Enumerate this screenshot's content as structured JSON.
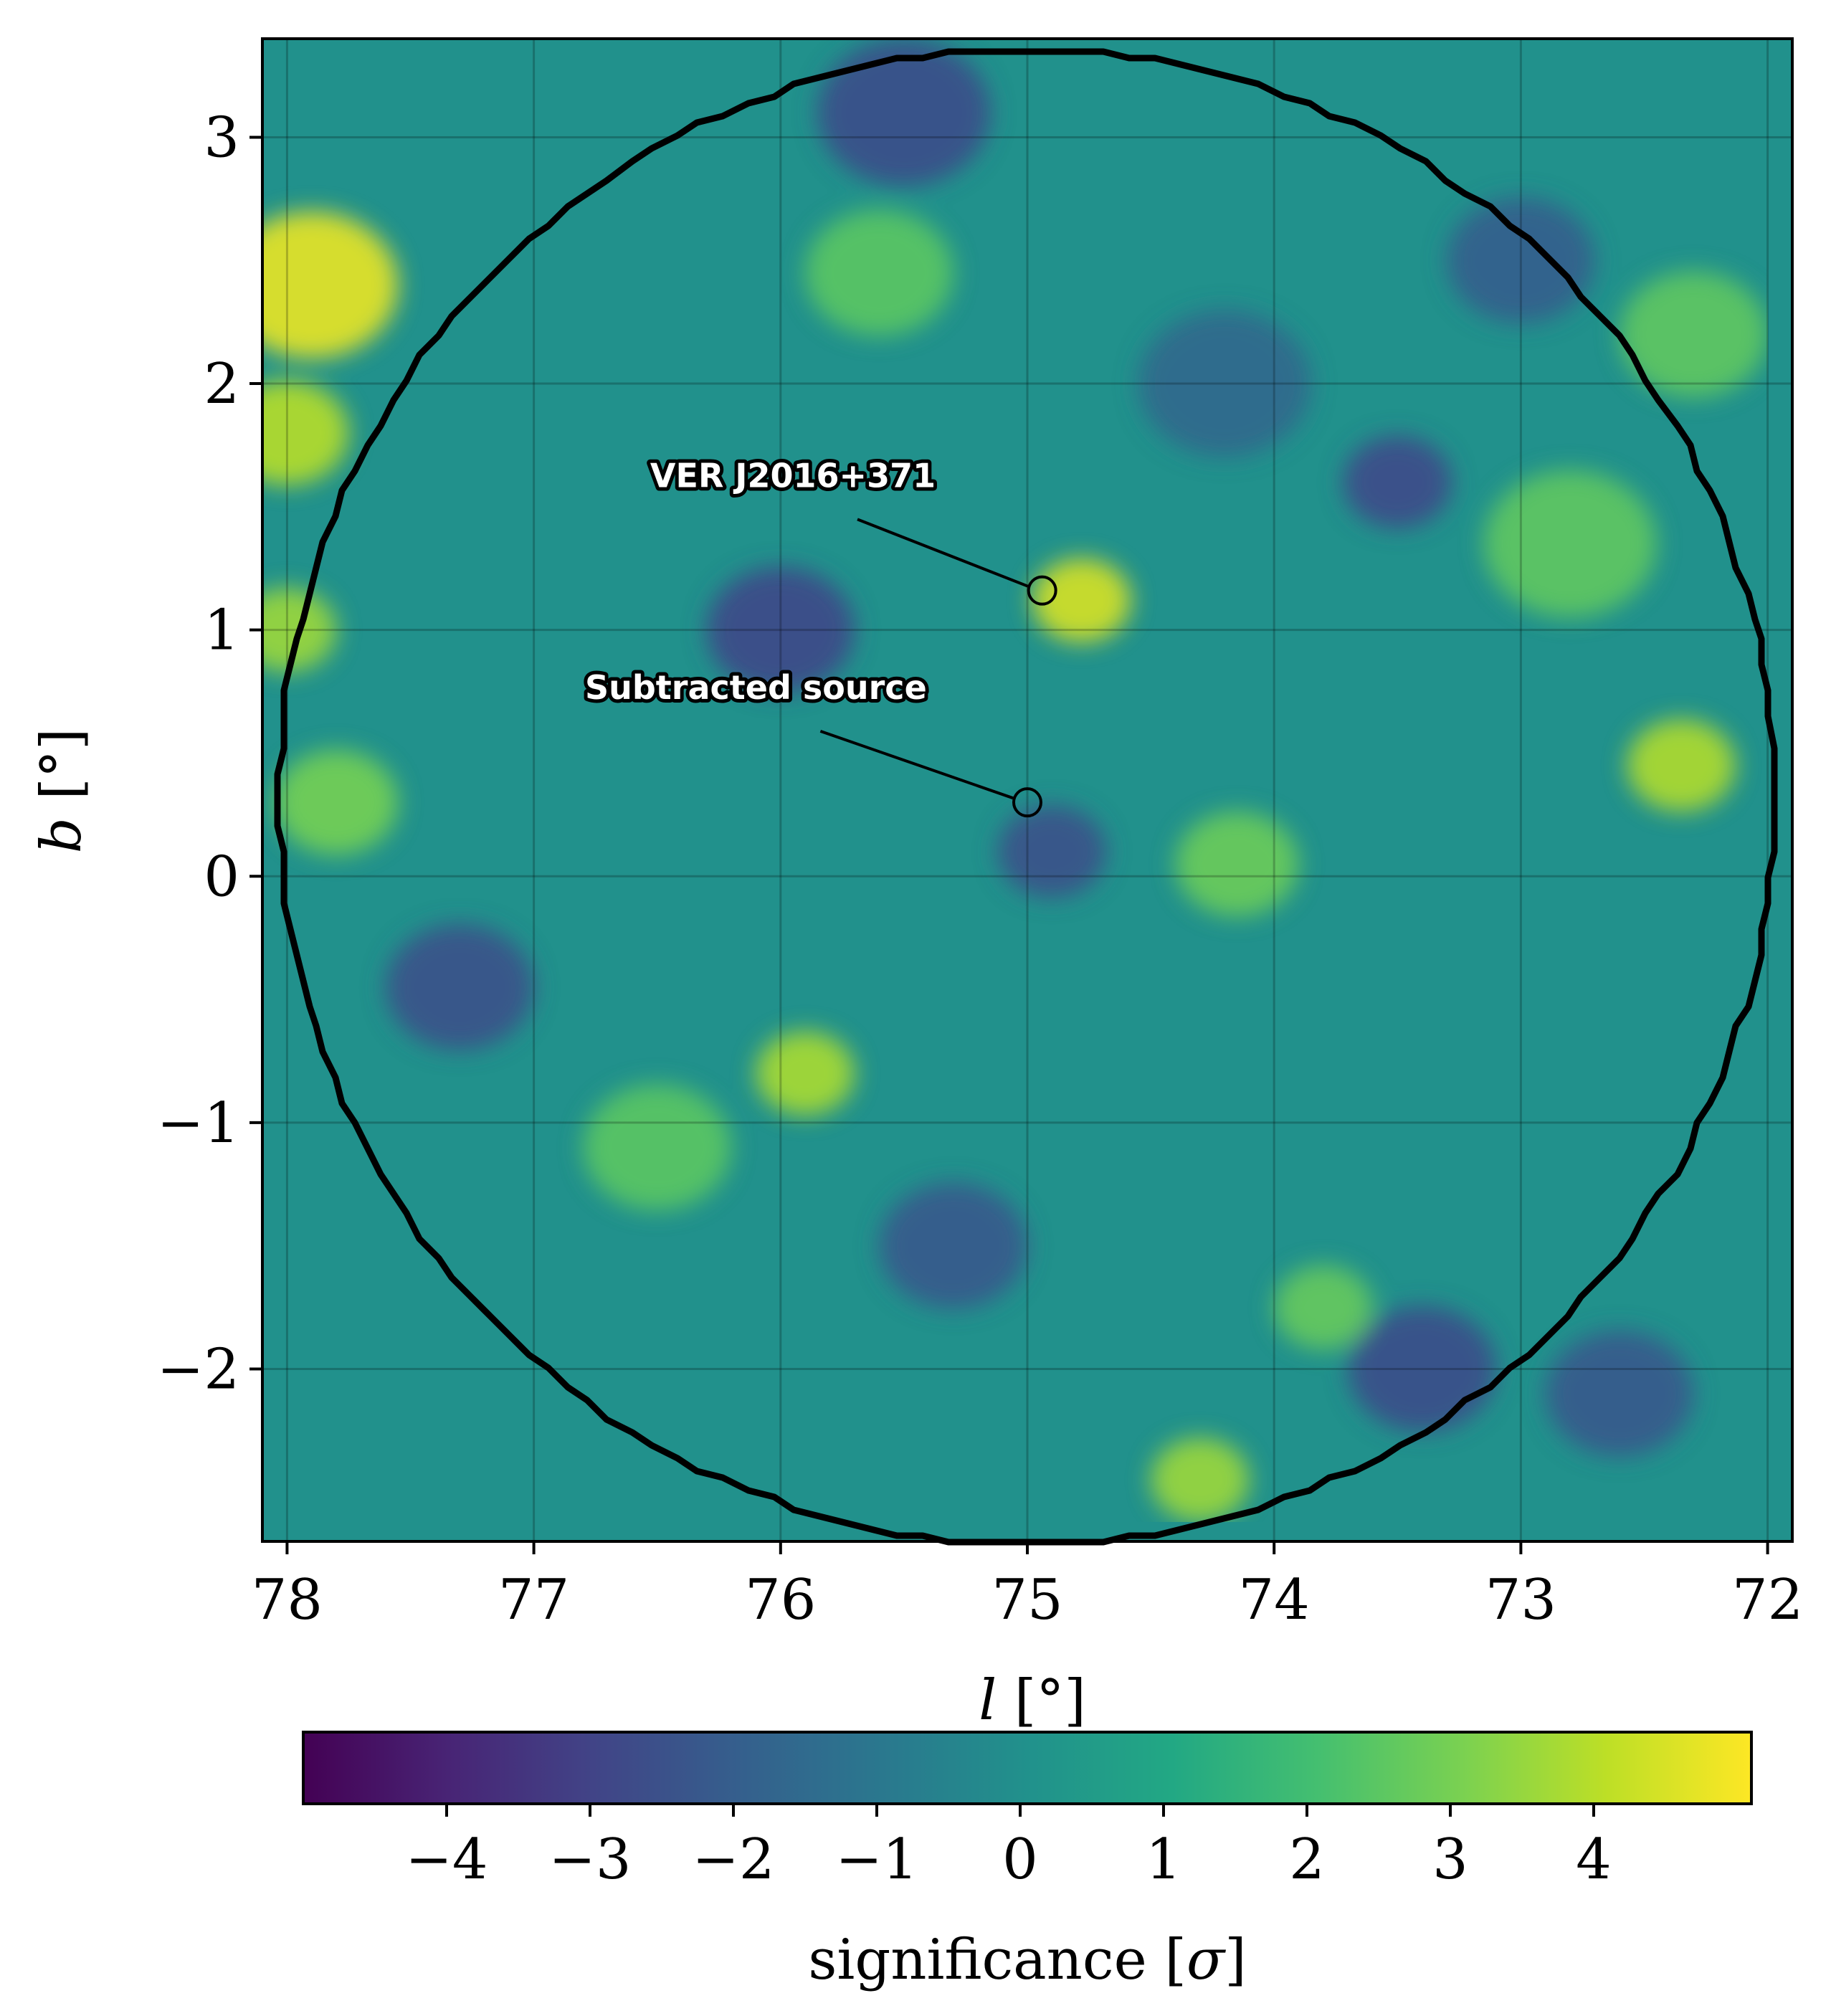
{
  "chart_data": {
    "type": "heatmap",
    "xlabel_main": "l",
    "xlabel_unit": " [°]",
    "ylabel_main": "b",
    "ylabel_unit": " [°]",
    "x_range": [
      78.1,
      71.9
    ],
    "y_range": [
      -2.7,
      3.4
    ],
    "x_ticks": [
      {
        "value": 78,
        "label": "78"
      },
      {
        "value": 77,
        "label": "77"
      },
      {
        "value": 76,
        "label": "76"
      },
      {
        "value": 75,
        "label": "75"
      },
      {
        "value": 74,
        "label": "74"
      },
      {
        "value": 73,
        "label": "73"
      },
      {
        "value": 72,
        "label": "72"
      }
    ],
    "y_ticks": [
      {
        "value": 3,
        "label": "3"
      },
      {
        "value": 2,
        "label": "2"
      },
      {
        "value": 1,
        "label": "1"
      },
      {
        "value": 0,
        "label": "0"
      },
      {
        "value": -1,
        "label": "−1"
      },
      {
        "value": -2,
        "label": "−2"
      }
    ],
    "grid": true,
    "colormap": "viridis",
    "colorbar": {
      "label_main": "significance [",
      "label_symbol": "σ",
      "label_end": "]",
      "range": [
        -5.0,
        5.1
      ],
      "ticks": [
        {
          "value": -4,
          "label": "−4"
        },
        {
          "value": -3,
          "label": "−3"
        },
        {
          "value": -2,
          "label": "−2"
        },
        {
          "value": -1,
          "label": "−1"
        },
        {
          "value": 0,
          "label": "0"
        },
        {
          "value": 1,
          "label": "1"
        },
        {
          "value": 2,
          "label": "2"
        },
        {
          "value": 3,
          "label": "3"
        },
        {
          "value": 4,
          "label": "4"
        }
      ],
      "placement": "bottom"
    },
    "hotspots": [
      {
        "l": 77.9,
        "b": 2.4,
        "sigma": 4.8,
        "width": 0.35
      },
      {
        "l": 78.0,
        "b": 1.8,
        "sigma": 4.0,
        "width": 0.25
      },
      {
        "l": 78.0,
        "b": 1.0,
        "sigma": 3.6,
        "width": 0.2
      },
      {
        "l": 74.78,
        "b": 1.12,
        "sigma": 4.5,
        "width": 0.2
      },
      {
        "l": 75.9,
        "b": -0.8,
        "sigma": 3.8,
        "width": 0.2
      },
      {
        "l": 72.35,
        "b": 0.45,
        "sigma": 3.9,
        "width": 0.22
      },
      {
        "l": 74.3,
        "b": -2.45,
        "sigma": 3.6,
        "width": 0.2
      },
      {
        "l": 77.8,
        "b": 0.3,
        "sigma": 3.0,
        "width": 0.25
      },
      {
        "l": 74.15,
        "b": 0.05,
        "sigma": 2.8,
        "width": 0.25
      },
      {
        "l": 72.8,
        "b": 1.35,
        "sigma": 2.6,
        "width": 0.35
      },
      {
        "l": 75.6,
        "b": 2.45,
        "sigma": 2.5,
        "width": 0.3
      },
      {
        "l": 73.8,
        "b": -1.75,
        "sigma": 2.7,
        "width": 0.2
      },
      {
        "l": 76.5,
        "b": -1.1,
        "sigma": 2.5,
        "width": 0.3
      },
      {
        "l": 72.3,
        "b": 2.2,
        "sigma": 2.6,
        "width": 0.3
      },
      {
        "l": 76.0,
        "b": 1.0,
        "sigma": -2.8,
        "width": 0.3
      },
      {
        "l": 73.5,
        "b": 1.6,
        "sigma": -2.7,
        "width": 0.22
      },
      {
        "l": 74.9,
        "b": 0.1,
        "sigma": -2.5,
        "width": 0.22
      },
      {
        "l": 77.3,
        "b": -0.45,
        "sigma": -2.5,
        "width": 0.3
      },
      {
        "l": 73.4,
        "b": -2.0,
        "sigma": -2.6,
        "width": 0.3
      },
      {
        "l": 75.5,
        "b": 3.1,
        "sigma": -2.6,
        "width": 0.35
      },
      {
        "l": 75.3,
        "b": -1.5,
        "sigma": -2.2,
        "width": 0.3
      },
      {
        "l": 73.0,
        "b": 2.5,
        "sigma": -2.0,
        "width": 0.3
      },
      {
        "l": 72.6,
        "b": -2.1,
        "sigma": -2.2,
        "width": 0.3
      },
      {
        "l": 74.2,
        "b": 2.0,
        "sigma": -1.6,
        "width": 0.35
      }
    ],
    "exclusion_region": {
      "center_l": 75.0,
      "center_b": 0.32,
      "radius_deg": 3.03,
      "line_color": "#000000"
    },
    "sources": [
      {
        "name": "VER J2016+371",
        "l": 74.94,
        "b": 1.16,
        "text_l": 75.95,
        "text_b": 1.58
      },
      {
        "name": "Subtracted source",
        "l": 75.0,
        "b": 0.3,
        "text_l": 76.1,
        "text_b": 0.72
      }
    ]
  }
}
